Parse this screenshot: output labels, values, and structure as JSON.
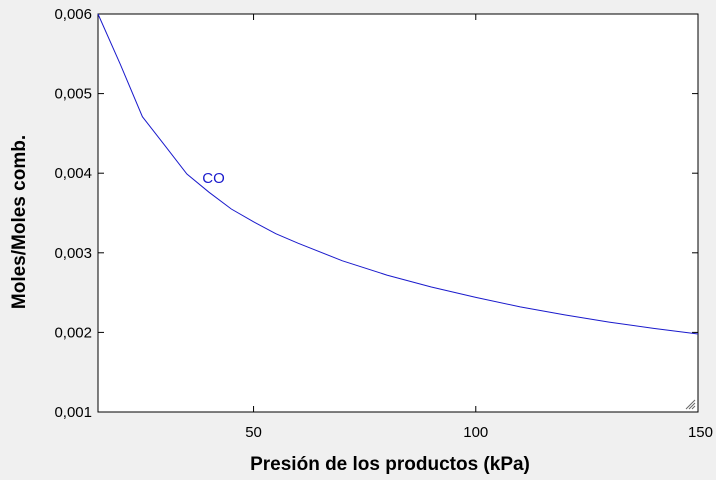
{
  "chart_data": {
    "type": "line",
    "title": "",
    "xlabel": "Presión de los productos  (kPa)",
    "ylabel": "Moles/Moles comb.",
    "xlim": [
      15,
      150
    ],
    "ylim": [
      0.001,
      0.006
    ],
    "x_ticks": [
      50,
      100,
      150
    ],
    "x_tick_labels": [
      "50",
      "100",
      "150"
    ],
    "y_ticks": [
      0.001,
      0.002,
      0.003,
      0.004,
      0.005,
      0.006
    ],
    "y_tick_labels": [
      "0,001",
      "0,002",
      "0,003",
      "0,004",
      "0,005",
      "0,006"
    ],
    "grid": false,
    "series": [
      {
        "name": "CO",
        "color": "#1a1acc",
        "x": [
          15,
          20,
          25,
          30,
          35,
          40,
          45,
          50,
          55,
          60,
          70,
          80,
          90,
          100,
          110,
          120,
          130,
          140,
          150
        ],
        "values": [
          0.006,
          0.00537,
          0.00471,
          0.00435,
          0.00399,
          0.00376,
          0.00355,
          0.00339,
          0.00324,
          0.00312,
          0.0029,
          0.00272,
          0.00257,
          0.00244,
          0.00232,
          0.00222,
          0.00213,
          0.00205,
          0.00198
        ]
      }
    ],
    "annotations": [
      {
        "text": "CO",
        "x": 41,
        "y": 0.00388,
        "color": "#1a1acc"
      }
    ]
  }
}
